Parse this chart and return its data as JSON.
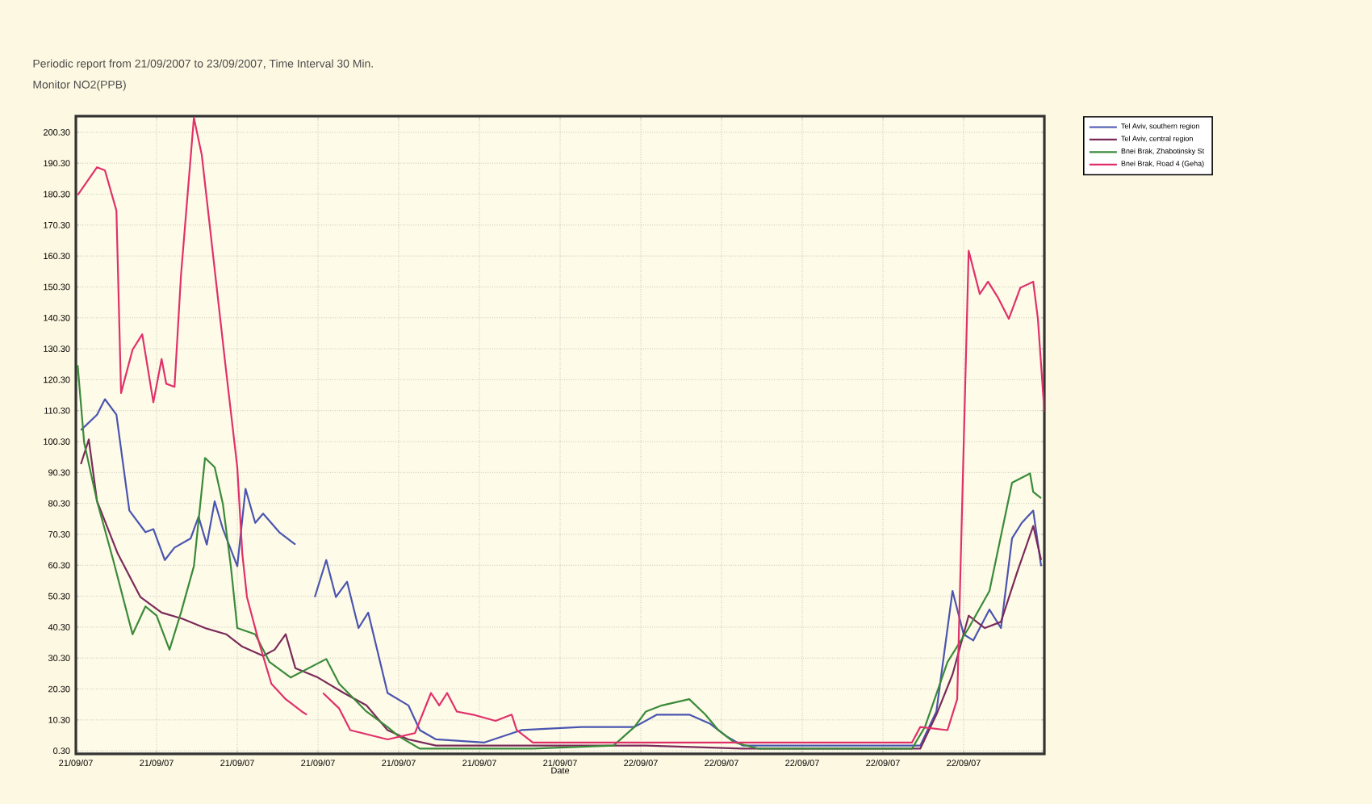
{
  "chart_data": {
    "type": "line",
    "title": "Periodic report from 21/09/2007 to 23/09/2007, Time Interval 30 Min.",
    "subtitle": "Monitor NO2(PPB)",
    "xlabel": "Date",
    "xlim": [
      "2007-09-21T00:00",
      "2007-09-22T21:00"
    ],
    "ylim": [
      -0.7,
      205.5
    ],
    "xticks": [
      {
        "value": "2007-09-21T00:00",
        "label": "21/09/07"
      },
      {
        "value": "2007-09-21T03:45",
        "label": "21/09/07"
      },
      {
        "value": "2007-09-21T07:30",
        "label": "21/09/07"
      },
      {
        "value": "2007-09-21T11:15",
        "label": "21/09/07"
      },
      {
        "value": "2007-09-21T15:00",
        "label": "21/09/07"
      },
      {
        "value": "2007-09-21T18:45",
        "label": "21/09/07"
      },
      {
        "value": "2007-09-21T22:30",
        "label": "21/09/07"
      },
      {
        "value": "2007-09-22T02:15",
        "label": "22/09/07"
      },
      {
        "value": "2007-09-22T06:00",
        "label": "22/09/07"
      },
      {
        "value": "2007-09-22T09:45",
        "label": "22/09/07"
      },
      {
        "value": "2007-09-22T13:30",
        "label": "22/09/07"
      },
      {
        "value": "2007-09-22T17:15",
        "label": "22/09/07"
      }
    ],
    "yticks": [
      {
        "value": 0.3,
        "label": "0.30"
      },
      {
        "value": 10.3,
        "label": "10.30"
      },
      {
        "value": 20.3,
        "label": "20.30"
      },
      {
        "value": 30.3,
        "label": "30.30"
      },
      {
        "value": 40.3,
        "label": "40.30"
      },
      {
        "value": 50.3,
        "label": "50.30"
      },
      {
        "value": 60.3,
        "label": "60.30"
      },
      {
        "value": 70.3,
        "label": "70.30"
      },
      {
        "value": 80.3,
        "label": "80.30"
      },
      {
        "value": 90.3,
        "label": "90.30"
      },
      {
        "value": 100.3,
        "label": "100.30"
      },
      {
        "value": 110.3,
        "label": "110.30"
      },
      {
        "value": 120.3,
        "label": "120.30"
      },
      {
        "value": 130.3,
        "label": "130.30"
      },
      {
        "value": 140.3,
        "label": "140.30"
      },
      {
        "value": 150.3,
        "label": "150.30"
      },
      {
        "value": 160.3,
        "label": "160.30"
      },
      {
        "value": 170.3,
        "label": "170.30"
      },
      {
        "value": 180.3,
        "label": "180.30"
      },
      {
        "value": 190.3,
        "label": "190.30"
      },
      {
        "value": 200.3,
        "label": "200.30"
      }
    ],
    "grid": true,
    "legend": "top right",
    "marker": "none",
    "line_style": "solid",
    "series": [
      {
        "name": "Tel Aviv, southern region",
        "color": "#4a55b0",
        "x": [
          "2007-09-21T00:14",
          "2007-09-21T00:59",
          "2007-09-21T01:21",
          "2007-09-21T01:53",
          "2007-09-21T02:29",
          "2007-09-21T03:14",
          "2007-09-21T03:36",
          "2007-09-21T04:08",
          "2007-09-21T04:35",
          "2007-09-21T05:20",
          "2007-09-21T05:42",
          "2007-09-21T06:05",
          "2007-09-21T06:27",
          "2007-09-21T06:50",
          "2007-09-21T07:30",
          "2007-09-21T07:53",
          "2007-09-21T08:20",
          "2007-09-21T08:42",
          "2007-09-21T09:27",
          "2007-09-21T10:12",
          "2007-09-21T10:39",
          "2007-09-21T11:06",
          "2007-09-21T11:38",
          "2007-09-21T12:05",
          "2007-09-21T12:36",
          "2007-09-21T13:08",
          "2007-09-21T13:35",
          "2007-09-21T14:29",
          "2007-09-21T15:27",
          "2007-09-21T15:59",
          "2007-09-21T16:44",
          "2007-09-21T18:59",
          "2007-09-21T20:42",
          "2007-09-21T23:29",
          "2007-09-22T01:57",
          "2007-09-22T03:00",
          "2007-09-22T04:30",
          "2007-09-22T05:29",
          "2007-09-22T06:14",
          "2007-09-22T06:59",
          "2007-09-22T09:59",
          "2007-09-22T15:14",
          "2007-09-22T15:59",
          "2007-09-22T16:44",
          "2007-09-22T17:15",
          "2007-09-22T17:42",
          "2007-09-22T18:27",
          "2007-09-22T18:59",
          "2007-09-22T19:30",
          "2007-09-22T19:57",
          "2007-09-22T20:29",
          "2007-09-22T20:51"
        ],
        "values": [
          104,
          109,
          114,
          109,
          78,
          71,
          72,
          62,
          66,
          69,
          76,
          67,
          81,
          72,
          60,
          85,
          74,
          77,
          71,
          67,
          null,
          50,
          62,
          50,
          55,
          40,
          45,
          19,
          15,
          7,
          4,
          3,
          7,
          8,
          8,
          12,
          12,
          9,
          5,
          2,
          2,
          2,
          13,
          52,
          38,
          36,
          46,
          40,
          69,
          74,
          78,
          60
        ]
      },
      {
        "name": "Tel Aviv, central region",
        "color": "#7a2a5a",
        "x": [
          "2007-09-21T00:14",
          "2007-09-21T00:36",
          "2007-09-21T00:59",
          "2007-09-21T01:57",
          "2007-09-21T03:00",
          "2007-09-21T03:59",
          "2007-09-21T04:57",
          "2007-09-21T06:00",
          "2007-09-21T06:59",
          "2007-09-21T07:44",
          "2007-09-21T08:42",
          "2007-09-21T09:14",
          "2007-09-21T09:45",
          "2007-09-21T10:12",
          "2007-09-21T11:15",
          "2007-09-21T12:27",
          "2007-09-21T13:30",
          "2007-09-21T14:29",
          "2007-09-21T15:27",
          "2007-09-21T16:44",
          "2007-09-21T20:29",
          "2007-09-22T02:29",
          "2007-09-22T06:59",
          "2007-09-22T15:14",
          "2007-09-22T15:59",
          "2007-09-22T16:44",
          "2007-09-22T17:29",
          "2007-09-22T18:14",
          "2007-09-22T18:59",
          "2007-09-22T19:44",
          "2007-09-22T20:29",
          "2007-09-22T20:51"
        ],
        "values": [
          93,
          101,
          81,
          64,
          50,
          45,
          43,
          40,
          38,
          34,
          31,
          33,
          38,
          27,
          24,
          19,
          15,
          7,
          4,
          2,
          2,
          2,
          1,
          1,
          12,
          25,
          44,
          40,
          42,
          58,
          73,
          62
        ]
      },
      {
        "name": "Bnei Brak, Zhabotinsky St",
        "color": "#3a8a3a",
        "x": [
          "2007-09-21T00:05",
          "2007-09-21T00:23",
          "2007-09-21T00:59",
          "2007-09-21T01:44",
          "2007-09-21T02:38",
          "2007-09-21T03:14",
          "2007-09-21T03:45",
          "2007-09-21T04:21",
          "2007-09-21T04:53",
          "2007-09-21T05:29",
          "2007-09-21T06:00",
          "2007-09-21T06:27",
          "2007-09-21T06:50",
          "2007-09-21T07:12",
          "2007-09-21T07:30",
          "2007-09-21T08:20",
          "2007-09-21T09:00",
          "2007-09-21T09:59",
          "2007-09-21T11:38",
          "2007-09-21T12:14",
          "2007-09-21T13:30",
          "2007-09-21T14:29",
          "2007-09-21T15:00",
          "2007-09-21T15:59",
          "2007-09-21T21:14",
          "2007-09-22T00:59",
          "2007-09-22T01:57",
          "2007-09-22T02:29",
          "2007-09-22T03:14",
          "2007-09-22T04:30",
          "2007-09-22T05:15",
          "2007-09-22T05:51",
          "2007-09-22T06:36",
          "2007-09-22T07:44",
          "2007-09-22T14:51",
          "2007-09-22T15:27",
          "2007-09-22T16:30",
          "2007-09-22T17:29",
          "2007-09-22T18:27",
          "2007-09-22T19:30",
          "2007-09-22T20:20",
          "2007-09-22T20:29",
          "2007-09-22T20:51"
        ],
        "values": [
          125,
          100,
          81,
          62,
          38,
          47,
          44,
          33,
          45,
          60,
          95,
          92,
          80,
          60,
          40,
          38,
          29,
          24,
          30,
          22,
          13,
          8,
          5,
          1,
          1,
          2,
          8,
          13,
          15,
          17,
          12,
          7,
          3,
          1,
          1,
          8,
          29,
          40,
          52,
          87,
          90,
          84,
          82
        ]
      },
      {
        "name": "Bnei Brak, Road 4 (Geha)",
        "color": "#e0306a",
        "x": [
          "2007-09-21T00:05",
          "2007-09-21T00:59",
          "2007-09-21T01:21",
          "2007-09-21T01:53",
          "2007-09-21T02:06",
          "2007-09-21T02:38",
          "2007-09-21T03:05",
          "2007-09-21T03:36",
          "2007-09-21T03:59",
          "2007-09-21T04:12",
          "2007-09-21T04:35",
          "2007-09-21T04:53",
          "2007-09-21T05:29",
          "2007-09-21T05:51",
          "2007-09-21T06:59",
          "2007-09-21T07:30",
          "2007-09-21T07:44",
          "2007-09-21T07:57",
          "2007-09-21T08:29",
          "2007-09-21T09:05",
          "2007-09-21T09:45",
          "2007-09-21T10:30",
          "2007-09-21T10:44",
          "2007-09-21T11:06",
          "2007-09-21T11:29",
          "2007-09-21T12:14",
          "2007-09-21T12:45",
          "2007-09-21T14:29",
          "2007-09-21T15:45",
          "2007-09-21T16:30",
          "2007-09-21T16:53",
          "2007-09-21T17:15",
          "2007-09-21T17:42",
          "2007-09-21T18:27",
          "2007-09-21T19:30",
          "2007-09-21T20:15",
          "2007-09-21T20:29",
          "2007-09-21T21:14",
          "2007-09-22T06:14",
          "2007-09-22T14:51",
          "2007-09-22T15:14",
          "2007-09-22T16:30",
          "2007-09-22T16:57",
          "2007-09-22T17:29",
          "2007-09-22T18:00",
          "2007-09-22T18:23",
          "2007-09-22T18:50",
          "2007-09-22T19:21",
          "2007-09-22T19:53",
          "2007-09-22T20:29",
          "2007-09-22T20:42",
          "2007-09-22T21:00"
        ],
        "values": [
          180,
          189,
          188,
          175,
          116,
          130,
          135,
          113,
          127,
          119,
          118,
          154,
          205,
          193,
          123,
          92,
          64,
          50,
          36,
          22,
          17,
          13,
          12,
          null,
          19,
          14,
          7,
          4,
          6,
          19,
          15,
          19,
          13,
          12,
          10,
          12,
          7,
          3,
          3,
          3,
          8,
          7,
          17,
          162,
          148,
          152,
          147,
          140,
          150,
          152,
          140,
          110
        ]
      }
    ]
  }
}
